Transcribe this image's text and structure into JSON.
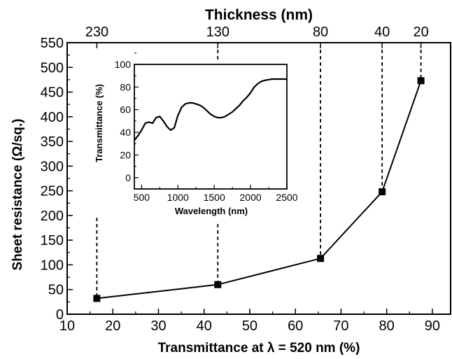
{
  "chart_data": [
    {
      "type": "line",
      "xlabel": "Transmittance at λ = 520 nm (%)",
      "ylabel": "Sheet resistance (Ω/sq.)",
      "top_axis_label": "Thickness (nm)",
      "xlim": [
        10,
        94
      ],
      "ylim": [
        0,
        550
      ],
      "x_ticks": [
        10,
        20,
        30,
        40,
        50,
        60,
        70,
        80,
        90
      ],
      "y_ticks": [
        0,
        50,
        100,
        150,
        200,
        250,
        300,
        350,
        400,
        450,
        500,
        550
      ],
      "top_ticks": [
        {
          "label": "230",
          "x": 16.5
        },
        {
          "label": "130",
          "x": 43
        },
        {
          "label": "80",
          "x": 65.5
        },
        {
          "label": "40",
          "x": 79
        },
        {
          "label": "20",
          "x": 87.5
        }
      ],
      "series": [
        {
          "marker": "square",
          "color": "#000000",
          "x": [
            16.5,
            43,
            65.5,
            79,
            87.5
          ],
          "y": [
            32,
            60,
            113,
            248,
            473
          ]
        }
      ],
      "grid": false
    },
    {
      "type": "line",
      "inset": true,
      "xlabel": "Wavelength (nm)",
      "ylabel": "Transmittance (%)",
      "xlim": [
        400,
        2500
      ],
      "ylim": [
        -10,
        100
      ],
      "x_ticks": [
        500,
        1000,
        1500,
        2000,
        2500
      ],
      "y_ticks": [
        0,
        20,
        40,
        60,
        80,
        100
      ],
      "series": [
        {
          "color": "#000000",
          "x": [
            400,
            450,
            500,
            550,
            600,
            650,
            700,
            750,
            800,
            850,
            900,
            950,
            1000,
            1050,
            1100,
            1150,
            1200,
            1250,
            1300,
            1350,
            1400,
            1450,
            1500,
            1550,
            1600,
            1650,
            1700,
            1750,
            1800,
            1850,
            1900,
            1950,
            2000,
            2050,
            2100,
            2150,
            2200,
            2250,
            2300,
            2350,
            2400,
            2450,
            2500
          ],
          "y": [
            33,
            37,
            42,
            48,
            49,
            48,
            53,
            54,
            50,
            45,
            42,
            44,
            55,
            62,
            65,
            66,
            66,
            65,
            64,
            62,
            59,
            56,
            54,
            53,
            53,
            54,
            56,
            58,
            61,
            64,
            68,
            71,
            75,
            80,
            83,
            85,
            86,
            86.5,
            87,
            87,
            87,
            87,
            87
          ]
        }
      ],
      "grid": false
    }
  ]
}
